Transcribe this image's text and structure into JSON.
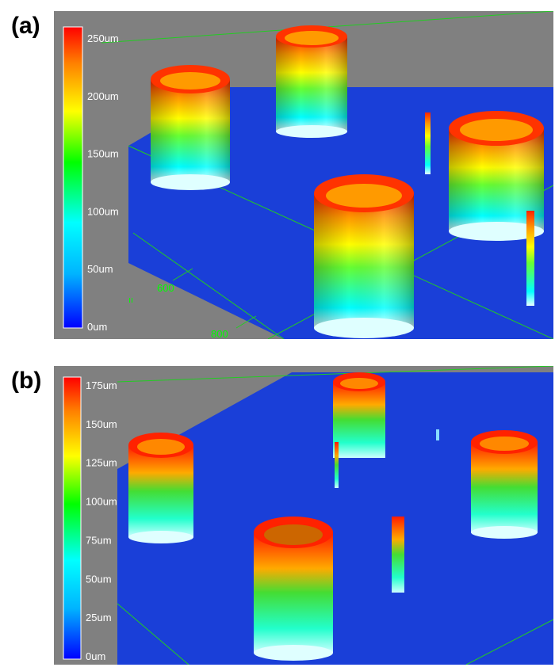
{
  "panels": [
    {
      "label": "(a)",
      "scale_unit_max": 250,
      "ticks": [
        "250um",
        "200um",
        "150um",
        "100um",
        "50um",
        "0um"
      ],
      "axis_labels": [
        "600",
        "800"
      ]
    },
    {
      "label": "(b)",
      "scale_unit_max": 175,
      "ticks": [
        "175um",
        "150um",
        "125um",
        "100um",
        "75um",
        "50um",
        "25um",
        "0um"
      ],
      "axis_labels": []
    }
  ],
  "colors": {
    "background": "#808080",
    "substrate": "#1a3fd8",
    "grid": "#22cc22",
    "axis_text": "#00ff00",
    "tick_text": "#ffffff"
  }
}
